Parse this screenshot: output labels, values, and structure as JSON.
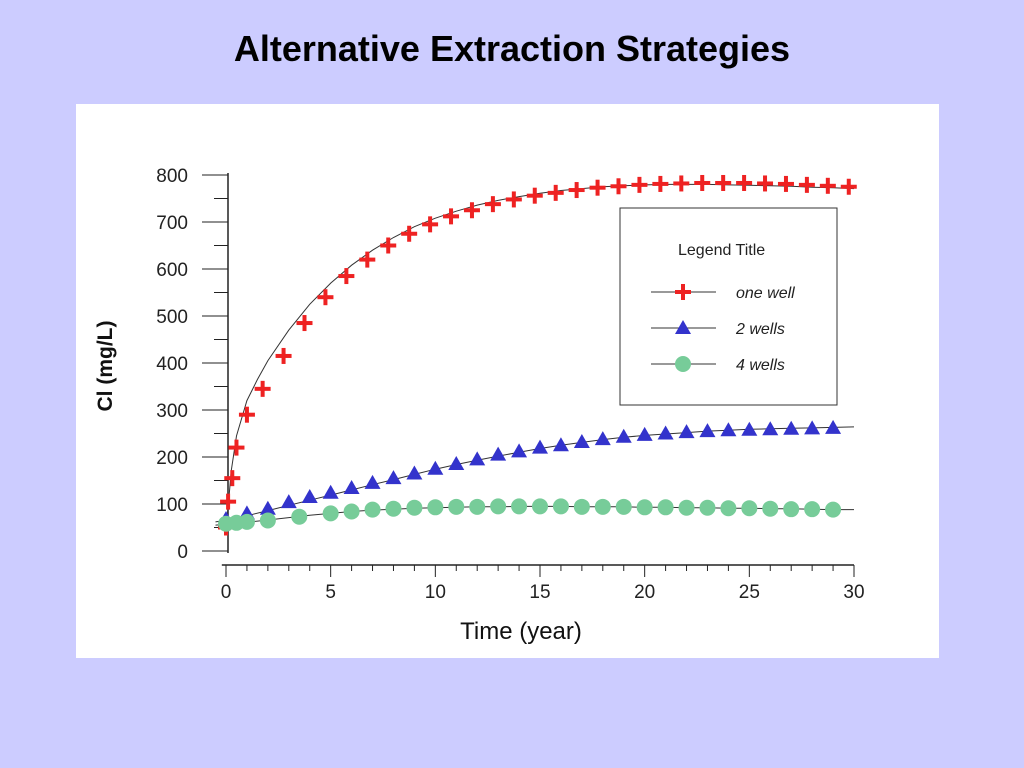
{
  "slide": {
    "title": "Alternative Extraction Strategies"
  },
  "chart_data": {
    "type": "scatter",
    "title": "",
    "xlabel": "Time (year)",
    "ylabel": "Cl (mg/L)",
    "xlim": [
      -1,
      30
    ],
    "ylim": [
      0,
      800
    ],
    "xticks": [
      0,
      5,
      10,
      15,
      20,
      25,
      30
    ],
    "yticks": [
      0,
      100,
      200,
      300,
      400,
      500,
      600,
      700,
      800
    ],
    "grid": false,
    "legend": {
      "title": "Legend Title",
      "placement": "top-right"
    },
    "series": [
      {
        "name": "one well",
        "marker": "plus",
        "color": "#ee2222",
        "x": [
          0,
          0.1,
          0.3,
          0.5,
          1,
          1.75,
          2.75,
          3.75,
          4.75,
          5.75,
          6.75,
          7.75,
          8.75,
          9.75,
          10.75,
          11.75,
          12.75,
          13.75,
          14.75,
          15.75,
          16.75,
          17.75,
          18.75,
          19.75,
          20.75,
          21.75,
          22.75,
          23.75,
          24.75,
          25.75,
          26.75,
          27.75,
          28.75,
          29.75
        ],
        "y": [
          50,
          105,
          155,
          220,
          290,
          345,
          415,
          485,
          540,
          585,
          620,
          650,
          675,
          695,
          712,
          725,
          738,
          748,
          756,
          762,
          768,
          773,
          776,
          779,
          781,
          782,
          783,
          783,
          783,
          782,
          781,
          779,
          777,
          775
        ],
        "fit": {
          "x": [
            0,
            0.25,
            0.5,
            1,
            1.5,
            2,
            3,
            4,
            5,
            6,
            7,
            8,
            9,
            10,
            11,
            12,
            13,
            14,
            15,
            16,
            17,
            18,
            19,
            20,
            21,
            22,
            23,
            24,
            25,
            26,
            27,
            28,
            29,
            30
          ],
          "y": [
            40,
            170,
            245,
            320,
            365,
            405,
            470,
            525,
            570,
            608,
            640,
            667,
            690,
            708,
            723,
            736,
            746,
            754,
            761,
            767,
            771,
            775,
            777,
            779,
            780,
            780,
            780,
            779,
            778,
            777,
            776,
            774,
            773,
            771
          ]
        }
      },
      {
        "name": "2 wells",
        "marker": "triangle",
        "color": "#3333cc",
        "x": [
          0,
          1,
          2,
          3,
          4,
          5,
          6,
          7,
          8,
          9,
          10,
          11,
          12,
          13,
          14,
          15,
          16,
          17,
          18,
          19,
          20,
          21,
          22,
          23,
          24,
          25,
          26,
          27,
          28,
          29
        ],
        "y": [
          68,
          80,
          90,
          104,
          115,
          124,
          134,
          145,
          155,
          165,
          175,
          185,
          195,
          205,
          212,
          220,
          225,
          232,
          238,
          243,
          247,
          250,
          253,
          255,
          257,
          258,
          259,
          260,
          261,
          262
        ],
        "fit": {
          "x": [
            -0.5,
            0,
            1,
            2,
            3,
            4,
            5,
            6,
            7,
            8,
            9,
            10,
            11,
            12,
            13,
            14,
            15,
            16,
            17,
            18,
            19,
            20,
            21,
            22,
            23,
            24,
            25,
            26,
            27,
            28,
            29,
            30
          ],
          "y": [
            62,
            65,
            75,
            86,
            97,
            108,
            119,
            130,
            141,
            152,
            163,
            174,
            184,
            193,
            202,
            210,
            218,
            225,
            231,
            237,
            242,
            246,
            249,
            252,
            255,
            257,
            259,
            260,
            261,
            262,
            263,
            264
          ]
        }
      },
      {
        "name": "4 wells",
        "marker": "circle",
        "color": "#77cc99",
        "x": [
          0,
          0.5,
          1,
          2,
          3.5,
          5,
          6,
          7,
          8,
          9,
          10,
          11,
          12,
          13,
          14,
          15,
          16,
          17,
          18,
          19,
          20,
          21,
          22,
          23,
          24,
          25,
          26,
          27,
          28,
          29
        ],
        "y": [
          58,
          60,
          62,
          65,
          73,
          80,
          84,
          88,
          90,
          92,
          93,
          94,
          94,
          95,
          95,
          95,
          95,
          94,
          94,
          94,
          93,
          93,
          92,
          92,
          91,
          91,
          90,
          89,
          89,
          88
        ],
        "fit": {
          "x": [
            -0.5,
            0,
            1,
            2,
            3,
            4,
            5,
            6,
            7,
            8,
            9,
            10,
            11,
            12,
            13,
            14,
            15,
            16,
            17,
            18,
            19,
            20,
            21,
            22,
            23,
            24,
            25,
            26,
            27,
            28,
            29,
            30
          ],
          "y": [
            55,
            57,
            61,
            66,
            71,
            76,
            80,
            84,
            87,
            89,
            91,
            92,
            93,
            94,
            94,
            95,
            95,
            95,
            94,
            94,
            94,
            93,
            93,
            92,
            92,
            91,
            91,
            90,
            90,
            89,
            88,
            88
          ]
        }
      }
    ]
  }
}
